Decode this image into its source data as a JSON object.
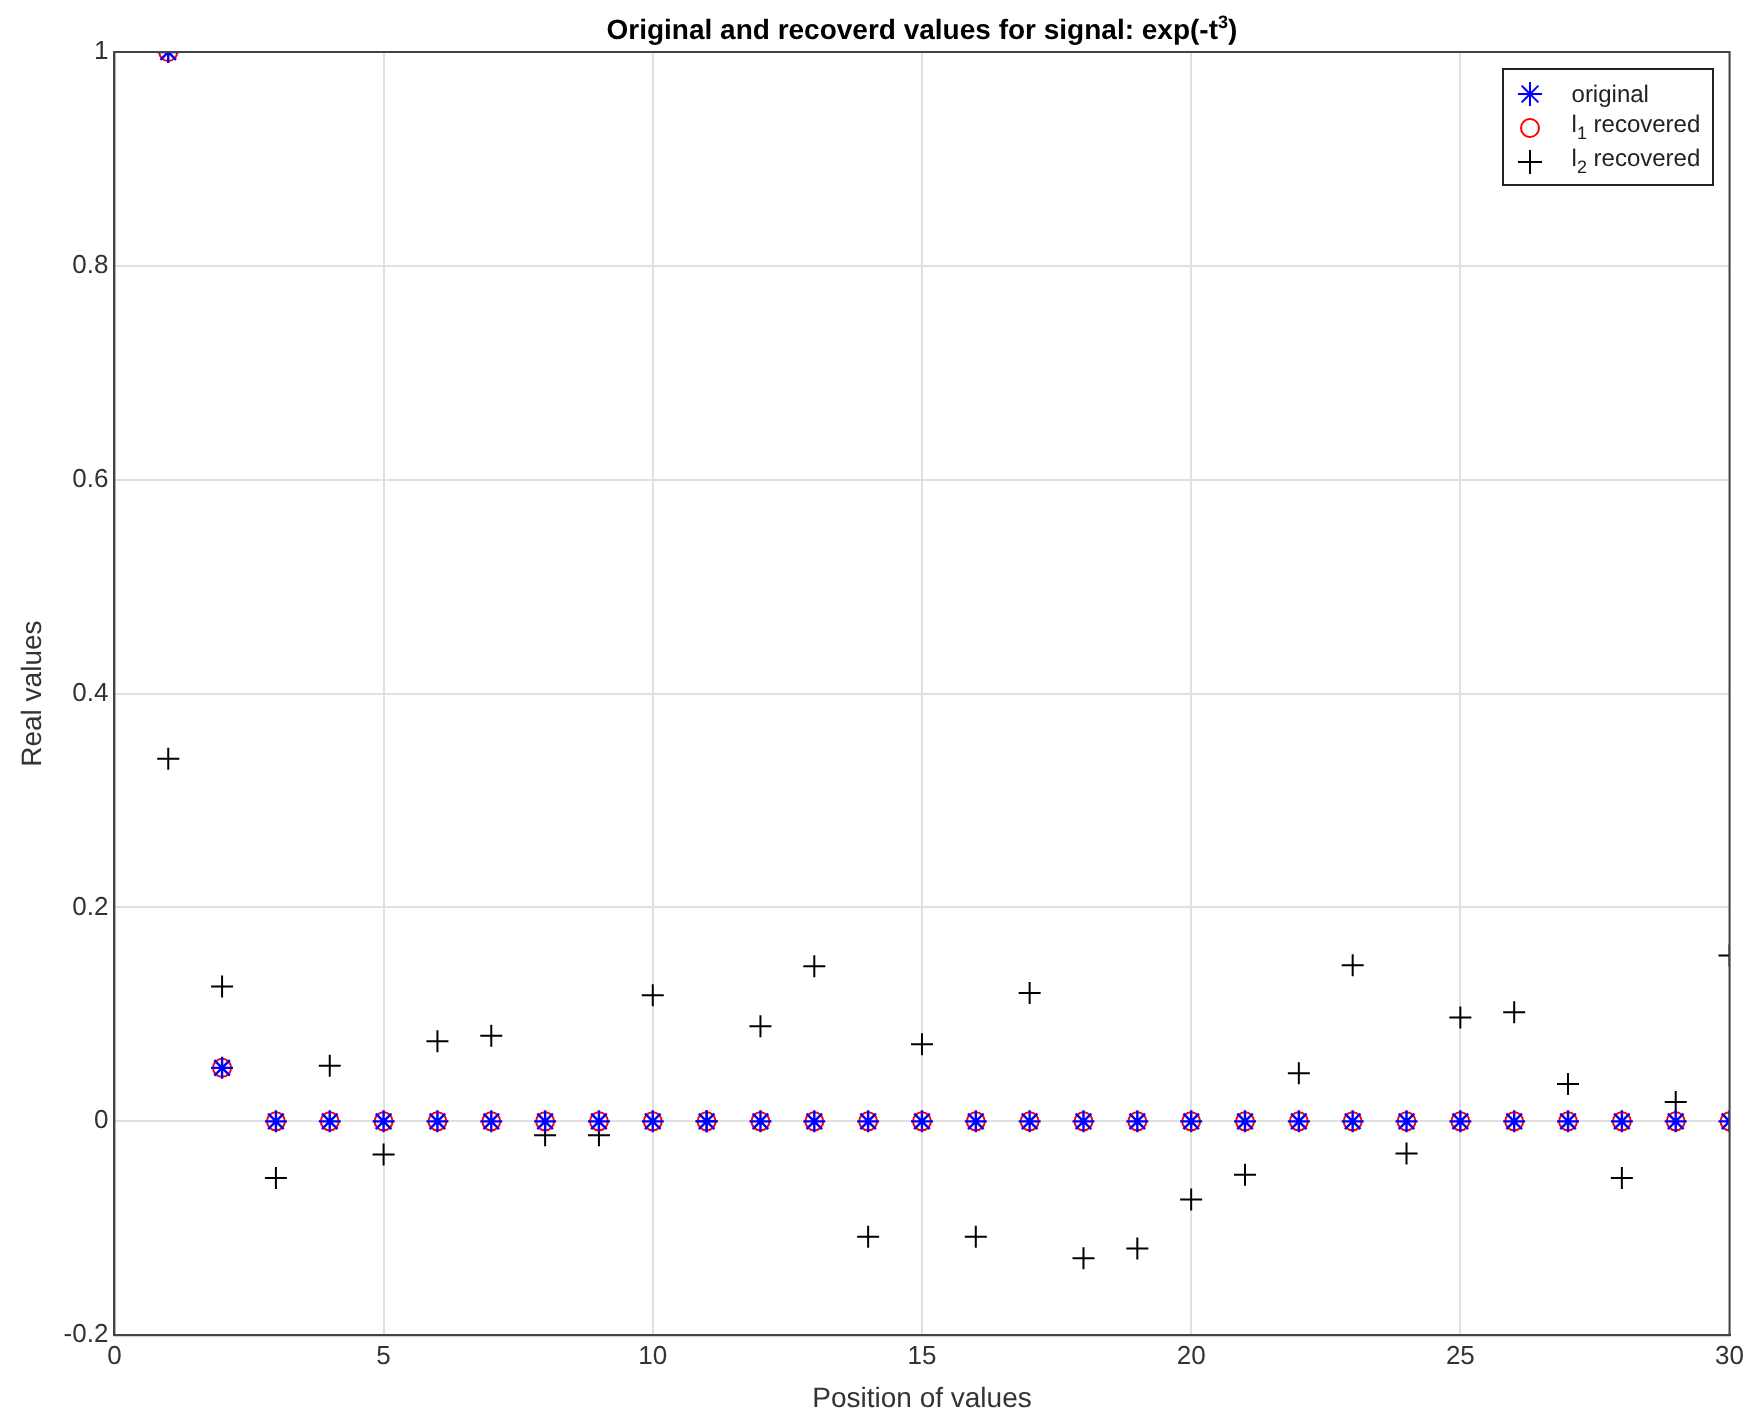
{
  "chart_data": {
    "type": "scatter",
    "title": "Original and recoverd values for signal: exp(-t$^{3}$)",
    "xlabel": "Position of values",
    "ylabel": "Real values",
    "x": [
      1,
      2,
      3,
      4,
      5,
      6,
      7,
      8,
      9,
      10,
      11,
      12,
      13,
      14,
      15,
      16,
      17,
      18,
      19,
      20,
      21,
      22,
      23,
      24,
      25,
      26,
      27,
      28,
      29,
      30
    ],
    "series": [
      {
        "name": "original",
        "color": "#0000ff",
        "values": [
          1,
          0.05,
          0,
          0,
          0,
          0,
          0,
          0,
          0,
          0,
          0,
          0,
          0,
          0,
          0,
          0,
          0,
          0,
          0,
          0,
          0,
          0,
          0,
          0,
          0,
          0,
          0,
          0,
          0,
          0
        ]
      },
      {
        "name": "l$_{1}$ recovered",
        "color": "#ff0000",
        "marker": "circle",
        "values": [
          1,
          0.05,
          0,
          0,
          0,
          0,
          0,
          0,
          0,
          0,
          0,
          0,
          0,
          0,
          0,
          0,
          0,
          0,
          0,
          0,
          0,
          0,
          0,
          0,
          0,
          0,
          0,
          0,
          0,
          0
        ]
      },
      {
        "name": "l$_{2}$ recovered",
        "color": "#000000",
        "marker": "cross",
        "values": [
          0.339,
          0.126,
          -0.053,
          0.052,
          -0.031,
          0.075,
          0.08,
          -0.013,
          -0.013,
          0.118,
          0,
          0.089,
          0.145,
          -0.108,
          0.072,
          -0.108,
          0.12,
          -0.128,
          -0.119,
          -0.073,
          -0.05,
          0.045,
          0.146,
          -0.03,
          0.097,
          0.102,
          0.035,
          -0.053,
          0.018,
          0.155
        ]
      }
    ],
    "xlim": [
      0,
      30
    ],
    "xticks": [
      0,
      5,
      10,
      15,
      20,
      25,
      30
    ],
    "ylim": [
      -0.2,
      1
    ],
    "yticks": [
      -0.2,
      0,
      0.2,
      0.4,
      0.6,
      0.8,
      1
    ],
    "grid": true,
    "legend": "top right"
  }
}
